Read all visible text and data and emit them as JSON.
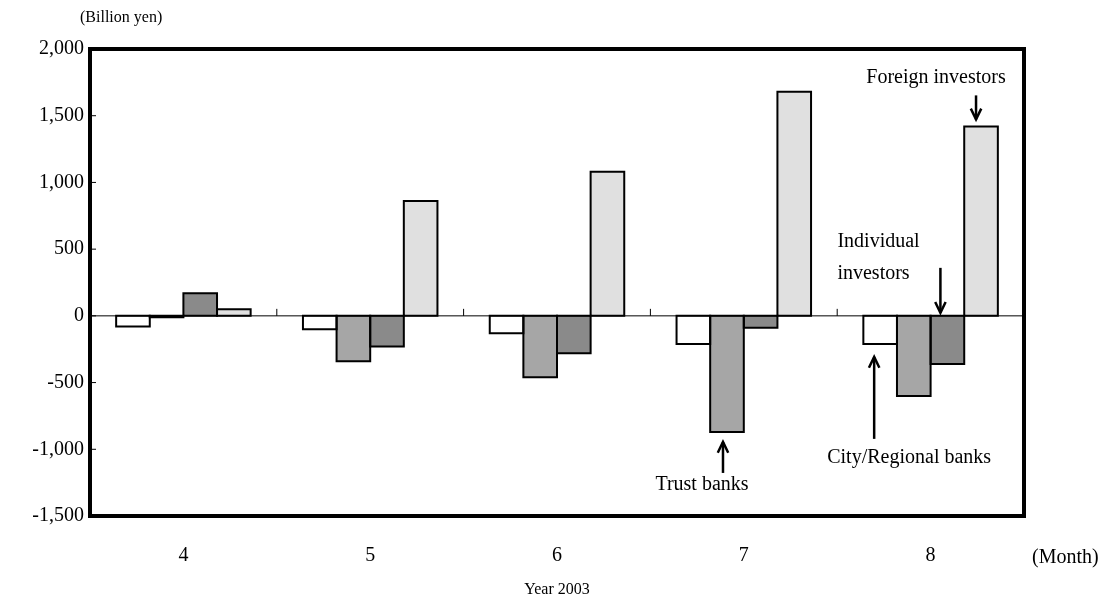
{
  "chart_data": {
    "type": "bar",
    "ylabel": "(Billion yen)",
    "xlabel": "Year 2003",
    "categories": [
      "4",
      "5",
      "6",
      "7",
      "8"
    ],
    "series": [
      {
        "color": "#ffffff",
        "values": [
          -80,
          -100,
          -130,
          -210,
          -210
        ]
      },
      {
        "color": "#a6a6a6",
        "values": [
          -10,
          -340,
          -460,
          -870,
          -600
        ]
      },
      {
        "color": "#8a8a8a",
        "values": [
          170,
          -230,
          -280,
          -90,
          -360
        ]
      },
      {
        "color": "#e0e0e0",
        "values": [
          50,
          860,
          1080,
          1680,
          1420
        ]
      }
    ],
    "ylim": [
      -1500,
      2000
    ],
    "yticks": [
      {
        "value": -1500,
        "label": "-1,500"
      },
      {
        "value": -1000,
        "label": "-1,000"
      },
      -500,
      0,
      500,
      {
        "value": 1000,
        "label": "1,000"
      },
      {
        "value": 1500,
        "label": "1,500"
      },
      {
        "value": 2000,
        "label": "2,000"
      }
    ],
    "annotations": [
      "Foreign investors",
      "Individual investors",
      "City/Regional banks",
      "Trust banks",
      "(Month)"
    ]
  }
}
